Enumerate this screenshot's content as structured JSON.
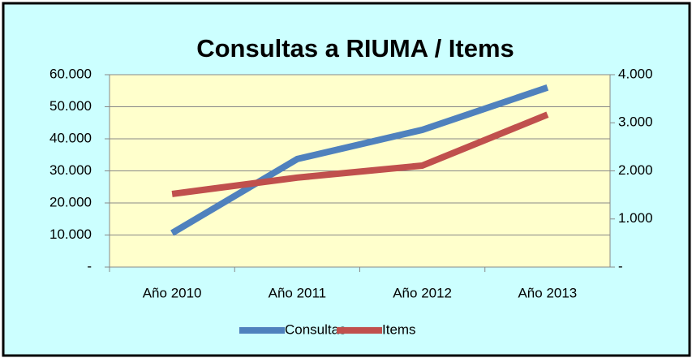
{
  "chart_data": {
    "type": "line",
    "title": "Consultas a RIUMA / Items",
    "categories": [
      "Año 2010",
      "Año 2011",
      "Año 2012",
      "Año 2013"
    ],
    "series": [
      {
        "name": "Consultas",
        "color": "#4f81bd",
        "values": [
          10600,
          33700,
          42800,
          56000
        ]
      },
      {
        "name": "Items",
        "color": "#c0504d",
        "axis": "y2",
        "values": [
          1520,
          1860,
          2110,
          3170
        ]
      }
    ],
    "ylim": [
      0,
      60000
    ],
    "yticks": [
      {
        "value": 0,
        "label": "-"
      },
      {
        "value": 10000,
        "label": "10.000"
      },
      {
        "value": 20000,
        "label": "20.000"
      },
      {
        "value": 30000,
        "label": "30.000"
      },
      {
        "value": 40000,
        "label": "40.000"
      },
      {
        "value": 50000,
        "label": "50.000"
      },
      {
        "value": 60000,
        "label": "60.000"
      }
    ],
    "y2lim": [
      0,
      4000
    ],
    "y2ticks": [
      {
        "value": 0,
        "label": "-"
      },
      {
        "value": 1000,
        "label": "1.000"
      },
      {
        "value": 2000,
        "label": "2.000"
      },
      {
        "value": 3000,
        "label": "3.000"
      },
      {
        "value": 4000,
        "label": "4.000"
      }
    ],
    "grid": true,
    "legend": "bottom"
  }
}
